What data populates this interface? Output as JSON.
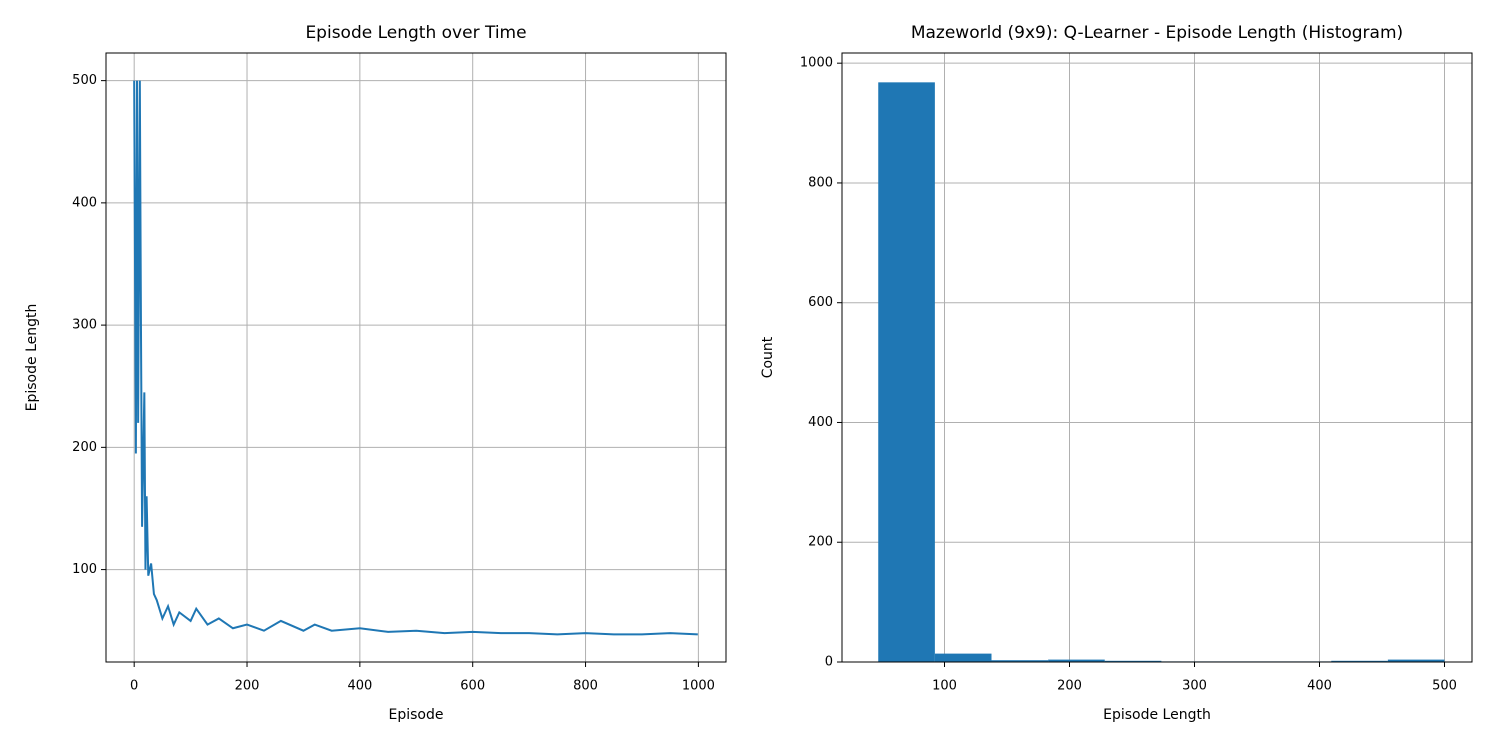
{
  "chart_data": [
    {
      "type": "line",
      "title": "Episode Length over Time",
      "xlabel": "Episode",
      "ylabel": "Episode Length",
      "x": [
        0,
        3,
        5,
        7,
        10,
        12,
        14,
        18,
        20,
        22,
        25,
        30,
        35,
        40,
        50,
        60,
        70,
        80,
        100,
        110,
        130,
        150,
        175,
        200,
        230,
        260,
        300,
        320,
        350,
        400,
        450,
        500,
        550,
        600,
        650,
        700,
        750,
        800,
        850,
        900,
        950,
        999
      ],
      "values": [
        500,
        195,
        500,
        220,
        500,
        300,
        135,
        245,
        100,
        160,
        95,
        105,
        80,
        75,
        60,
        70,
        55,
        65,
        58,
        68,
        55,
        60,
        52,
        55,
        50,
        58,
        50,
        55,
        50,
        52,
        49,
        50,
        48,
        49,
        48,
        48,
        47,
        48,
        47,
        47,
        48,
        47
      ],
      "color": "#1f77b4",
      "xlim": [
        -49.95,
        1048.95
      ],
      "ylim": [
        24.4,
        522.6
      ],
      "xticks": [
        0,
        200,
        400,
        600,
        800,
        1000
      ],
      "yticks": [
        100,
        200,
        300,
        400,
        500
      ],
      "grid": true
    },
    {
      "type": "histogram",
      "title": "Mazeworld (9x9): Q-Learner - Episode Length (Histogram)",
      "xlabel": "Episode Length",
      "ylabel": "Count",
      "bins": [
        47,
        92.3,
        137.6,
        182.9,
        228.2,
        273.5,
        318.8,
        364.1,
        409.4,
        454.7,
        500
      ],
      "counts": [
        968,
        14,
        3,
        4,
        2,
        1,
        1,
        1,
        2,
        4
      ],
      "color": "#1f77b4",
      "xlim": [
        18,
        522
      ],
      "ylim": [
        0,
        1017
      ],
      "xticks": [
        100,
        200,
        300,
        400,
        500
      ],
      "yticks": [
        0,
        200,
        400,
        600,
        800,
        1000
      ],
      "grid": true
    }
  ]
}
